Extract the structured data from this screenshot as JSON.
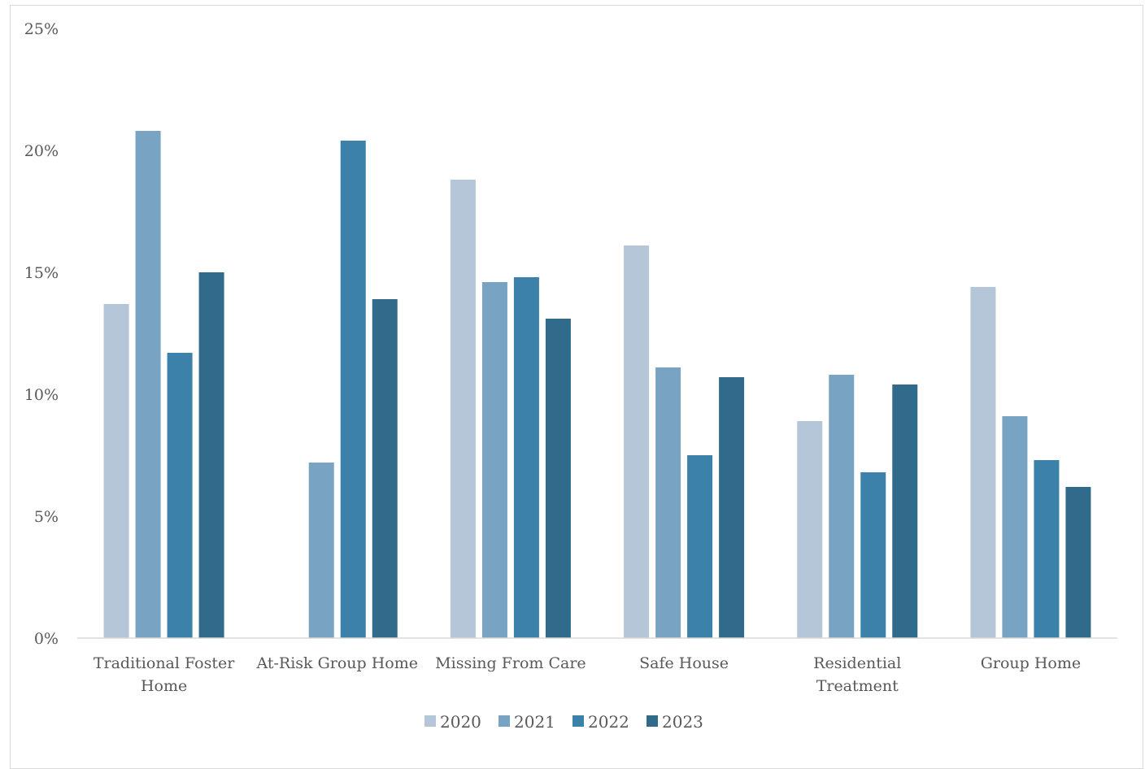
{
  "chart_data": {
    "type": "bar",
    "title": "",
    "xlabel": "",
    "ylabel": "",
    "ylim": [
      0,
      25
    ],
    "yticks": [
      "0%",
      "5%",
      "10%",
      "15%",
      "20%",
      "25%"
    ],
    "ytick_values": [
      0,
      5,
      10,
      15,
      20,
      25
    ],
    "grid": false,
    "legend_position": "bottom",
    "categories": [
      [
        "Traditional Foster",
        "Home"
      ],
      [
        "At-Risk Group Home"
      ],
      [
        "Missing From Care"
      ],
      [
        "Safe House"
      ],
      [
        "Residential",
        "Treatment"
      ],
      [
        "Group Home"
      ]
    ],
    "series": [
      {
        "name": "2020",
        "color": "#b4c6d8",
        "values": [
          13.7,
          0,
          18.8,
          16.1,
          8.9,
          14.4
        ]
      },
      {
        "name": "2021",
        "color": "#78a3c3",
        "values": [
          20.8,
          7.2,
          14.6,
          11.1,
          10.8,
          9.1
        ]
      },
      {
        "name": "2022",
        "color": "#3c81aa",
        "values": [
          11.7,
          20.4,
          14.8,
          7.5,
          6.8,
          7.3
        ]
      },
      {
        "name": "2023",
        "color": "#316b8b",
        "values": [
          15.0,
          13.9,
          13.1,
          10.7,
          10.4,
          6.2
        ]
      }
    ]
  }
}
